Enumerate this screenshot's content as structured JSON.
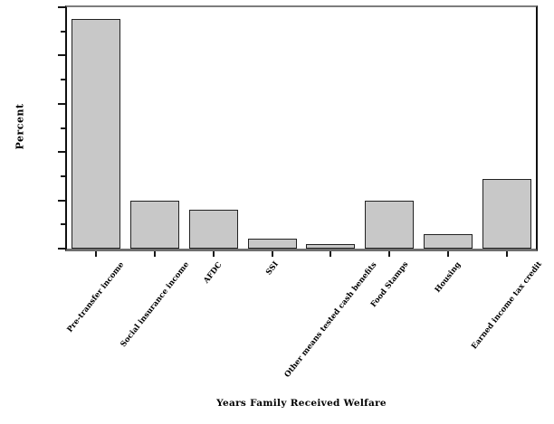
{
  "chart_data": {
    "type": "bar",
    "title": "",
    "categories": [
      "Pre-transfer income",
      "Social insurance income",
      "AFDC",
      "SSI",
      "Other means tested cash benefits",
      "Food Stamps",
      "Housing",
      "Earned income tax credit"
    ],
    "values": [
      95,
      20,
      16,
      4,
      2,
      20,
      6,
      29
    ],
    "bar_value_labels": [
      "95",
      "20",
      "16",
      "4",
      "2",
      "20",
      "6",
      "29"
    ],
    "xlabel": "Years Family Received Welfare",
    "ylabel": "Percent",
    "ylim": [
      0,
      100
    ],
    "yticks_major": [
      0,
      20,
      40,
      60,
      80,
      100
    ],
    "yticks_minor": [
      10,
      30,
      50,
      70,
      90
    ],
    "grid": "off",
    "legend": "none",
    "colors": {
      "bar_fill": "#c8c8c8",
      "bar_border": "#222222",
      "frame_horizontal": "#7d7d7d",
      "frame_vertical": "#101010",
      "tick": "#161616",
      "text": "#000000",
      "background": "#ffffff"
    }
  }
}
